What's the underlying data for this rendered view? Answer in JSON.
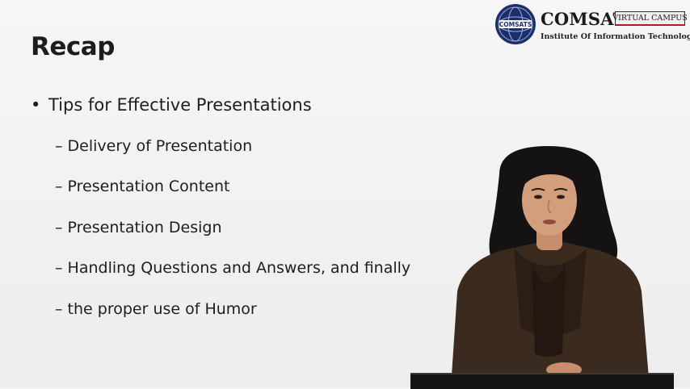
{
  "logo": {
    "seal_text": "COMSATS",
    "brand": "COMSATS",
    "badge": "VIRTUAL CAMPUS",
    "subline": "Institute Of Information Technology"
  },
  "slide": {
    "title": "Recap",
    "main_bullet": "Tips for Effective Presentations",
    "sub_bullets": [
      "– Delivery of Presentation",
      "– Presentation Content",
      "– Presentation Design",
      "– Handling Questions and Answers, and finally",
      "– the proper use of Humor"
    ]
  },
  "colors": {
    "background": "#f3f3f3",
    "text": "#1e1e1e",
    "seal_blue": "#1c2f6b",
    "badge_underline": "#b31b1b"
  }
}
